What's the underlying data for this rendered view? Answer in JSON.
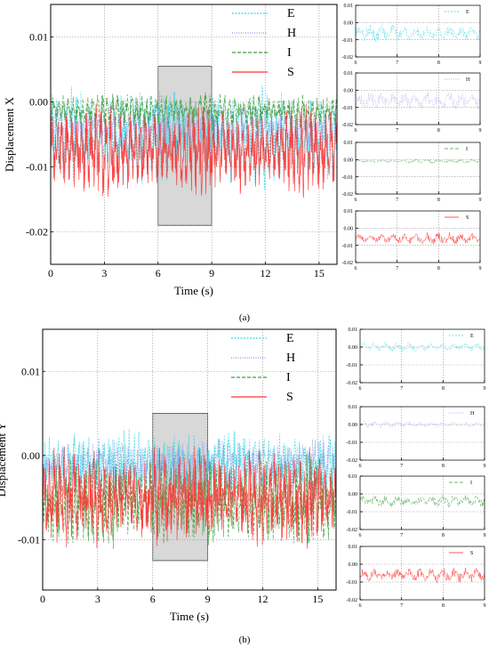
{
  "figure": {
    "label_a": "(a)",
    "label_b": "(b)"
  },
  "colors": {
    "E": "#33d6e8",
    "H": "#8e8ee6",
    "I": "#3e9e3e",
    "S": "#ff3333",
    "highlight": "#d8d8d8",
    "grid": "#9a9a9a"
  },
  "chart_data": [
    {
      "id": "a-main",
      "type": "line",
      "xlabel": "Time (s)",
      "ylabel": "Displacement X",
      "xlim": [
        0,
        16
      ],
      "ylim": [
        -0.025,
        0.015
      ],
      "xticks": [
        0,
        3,
        6,
        9,
        12,
        15
      ],
      "xtick_labels": [
        "0",
        "3",
        "6",
        "9",
        "12",
        "15"
      ],
      "yticks": [
        0.01,
        0.0,
        -0.01,
        -0.02
      ],
      "ytick_labels": [
        "0.01",
        "0.00",
        "-0.01",
        "-0.02"
      ],
      "grid": true,
      "legend": "top-right",
      "highlight": {
        "x": [
          6,
          9
        ],
        "y": [
          -0.019,
          0.0055
        ]
      },
      "series": [
        {
          "name": "E",
          "mean": -0.0055,
          "amp": 0.0065,
          "x": [
            0,
            16
          ]
        },
        {
          "name": "H",
          "mean": -0.004,
          "amp": 0.0035,
          "x": [
            0,
            16
          ]
        },
        {
          "name": "I",
          "mean": -0.0015,
          "amp": 0.0025,
          "x": [
            0,
            16
          ]
        },
        {
          "name": "S",
          "mean": -0.0075,
          "amp": 0.006,
          "x": [
            0,
            16
          ]
        }
      ]
    },
    {
      "id": "a-E",
      "type": "line",
      "xlim": [
        6,
        9
      ],
      "ylim": [
        -0.02,
        0.01
      ],
      "xticks": [
        6,
        7,
        8,
        9
      ],
      "xtick_labels": [
        "6",
        "7",
        "8",
        "9"
      ],
      "yticks": [
        0.01,
        0.0,
        -0.01,
        -0.02
      ],
      "ytick_labels": [
        "0.01",
        "0.00",
        "-0.01",
        "-0.02"
      ],
      "grid": true,
      "legend": "top-right",
      "series": [
        {
          "name": "E",
          "mean": -0.006,
          "amp": 0.004,
          "x": [
            6,
            9
          ]
        }
      ]
    },
    {
      "id": "a-H",
      "type": "line",
      "xlim": [
        6,
        9
      ],
      "ylim": [
        -0.02,
        0.01
      ],
      "xticks": [
        6,
        7,
        8,
        9
      ],
      "xtick_labels": [
        "6",
        "7",
        "8",
        "9"
      ],
      "yticks": [
        0.01,
        0.0,
        -0.01,
        -0.02
      ],
      "ytick_labels": [
        "0.01",
        "0.00",
        "-0.01",
        "-0.02"
      ],
      "grid": true,
      "legend": "top-right",
      "series": [
        {
          "name": "H",
          "mean": -0.006,
          "amp": 0.0045,
          "x": [
            6,
            9
          ]
        }
      ]
    },
    {
      "id": "a-I",
      "type": "line",
      "xlim": [
        6,
        9
      ],
      "ylim": [
        -0.02,
        0.01
      ],
      "xticks": [
        6,
        7,
        8,
        9
      ],
      "xtick_labels": [
        "6",
        "7",
        "8",
        "9"
      ],
      "yticks": [
        0.01,
        0.0,
        -0.01,
        -0.02
      ],
      "ytick_labels": [
        "0.01",
        "0.00",
        "-0.01",
        "-0.02"
      ],
      "grid": true,
      "legend": "top-right",
      "series": [
        {
          "name": "I",
          "mean": -0.001,
          "amp": 0.001,
          "x": [
            6,
            9
          ]
        }
      ]
    },
    {
      "id": "a-S",
      "type": "line",
      "xlim": [
        6,
        9
      ],
      "ylim": [
        -0.02,
        0.01
      ],
      "xticks": [
        6,
        7,
        8,
        9
      ],
      "xtick_labels": [
        "6",
        "7",
        "8",
        "9"
      ],
      "yticks": [
        0.01,
        0.0,
        -0.01,
        -0.02
      ],
      "ytick_labels": [
        "0.01",
        "0.00",
        "-0.01",
        "-0.02"
      ],
      "grid": true,
      "legend": "top-right",
      "series": [
        {
          "name": "S",
          "mean": -0.006,
          "amp": 0.003,
          "x": [
            6,
            9
          ]
        }
      ]
    },
    {
      "id": "b-main",
      "type": "line",
      "xlabel": "Time (s)",
      "ylabel": "Displacement Y",
      "xlim": [
        0,
        16
      ],
      "ylim": [
        -0.016,
        0.015
      ],
      "xticks": [
        0,
        3,
        6,
        9,
        12,
        15
      ],
      "xtick_labels": [
        "0",
        "3",
        "6",
        "9",
        "12",
        "15"
      ],
      "yticks": [
        0.01,
        0.0,
        -0.01
      ],
      "ytick_labels": [
        "0.01",
        "0.00",
        "-0.01"
      ],
      "grid": true,
      "legend": "top-right",
      "highlight": {
        "x": [
          6,
          9
        ],
        "y": [
          -0.0125,
          0.005
        ]
      },
      "series": [
        {
          "name": "E",
          "mean": -0.001,
          "amp": 0.0035,
          "x": [
            0,
            16
          ]
        },
        {
          "name": "H",
          "mean": -0.0015,
          "amp": 0.003,
          "x": [
            0,
            16
          ]
        },
        {
          "name": "I",
          "mean": -0.0055,
          "amp": 0.0045,
          "x": [
            0,
            16
          ]
        },
        {
          "name": "S",
          "mean": -0.005,
          "amp": 0.005,
          "x": [
            0,
            16
          ]
        }
      ]
    },
    {
      "id": "b-E",
      "type": "line",
      "xlim": [
        6,
        9
      ],
      "ylim": [
        -0.02,
        0.01
      ],
      "xticks": [
        6,
        7,
        8,
        9
      ],
      "xtick_labels": [
        "6",
        "7",
        "8",
        "9"
      ],
      "yticks": [
        0.01,
        0.0,
        -0.01,
        -0.02
      ],
      "ytick_labels": [
        "0.01",
        "0.00",
        "-0.01",
        "-0.02"
      ],
      "grid": true,
      "legend": "top-right",
      "series": [
        {
          "name": "E",
          "mean": 0.0,
          "amp": 0.0025,
          "x": [
            6,
            9
          ]
        }
      ]
    },
    {
      "id": "b-H",
      "type": "line",
      "xlim": [
        6,
        9
      ],
      "ylim": [
        -0.02,
        0.01
      ],
      "xticks": [
        6,
        7,
        8,
        9
      ],
      "xtick_labels": [
        "6",
        "7",
        "8",
        "9"
      ],
      "yticks": [
        0.01,
        0.0,
        -0.01,
        -0.02
      ],
      "ytick_labels": [
        "0.01",
        "0.00",
        "-0.01",
        "-0.02"
      ],
      "grid": true,
      "legend": "top-right",
      "series": [
        {
          "name": "H",
          "mean": 0.0,
          "amp": 0.0015,
          "x": [
            6,
            9
          ]
        }
      ]
    },
    {
      "id": "b-I",
      "type": "line",
      "xlim": [
        6,
        9
      ],
      "ylim": [
        -0.02,
        0.01
      ],
      "xticks": [
        6,
        7,
        8,
        9
      ],
      "xtick_labels": [
        "6",
        "7",
        "8",
        "9"
      ],
      "yticks": [
        0.01,
        0.0,
        -0.01,
        -0.02
      ],
      "ytick_labels": [
        "0.01",
        "0.00",
        "-0.01",
        "-0.02"
      ],
      "grid": true,
      "legend": "top-right",
      "series": [
        {
          "name": "I",
          "mean": -0.004,
          "amp": 0.003,
          "x": [
            6,
            9
          ]
        }
      ]
    },
    {
      "id": "b-S",
      "type": "line",
      "xlim": [
        6,
        9
      ],
      "ylim": [
        -0.02,
        0.01
      ],
      "xticks": [
        6,
        7,
        8,
        9
      ],
      "xtick_labels": [
        "6",
        "7",
        "8",
        "9"
      ],
      "yticks": [
        0.01,
        0.0,
        -0.01,
        -0.02
      ],
      "ytick_labels": [
        "0.01",
        "0.00",
        "-0.01",
        "-0.02"
      ],
      "grid": true,
      "legend": "top-right",
      "series": [
        {
          "name": "S",
          "mean": -0.006,
          "amp": 0.0035,
          "x": [
            6,
            9
          ]
        }
      ]
    }
  ]
}
